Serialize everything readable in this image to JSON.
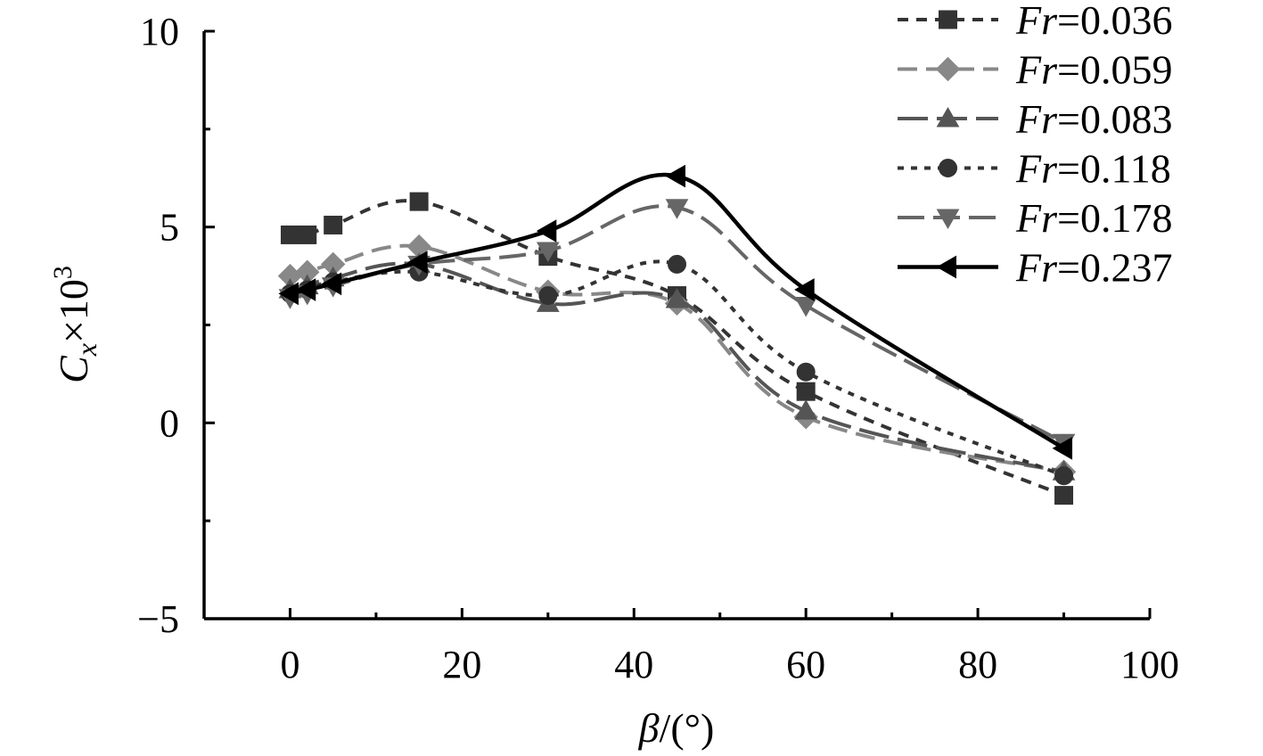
{
  "chart_data": {
    "type": "line",
    "title": "",
    "xlabel": {
      "symbol": "β",
      "unit": "/(°)"
    },
    "ylabel": {
      "symbol": "C",
      "subscript": "x",
      "times": "×10",
      "exponent": "3"
    },
    "xlim": [
      -10,
      100
    ],
    "ylim": [
      -5,
      10
    ],
    "xticks": [
      0,
      20,
      40,
      60,
      80,
      100
    ],
    "yticks": [
      -5,
      0,
      5,
      10
    ],
    "xtick_labels": [
      "0",
      "20",
      "40",
      "60",
      "80",
      "100"
    ],
    "ytick_labels": [
      "−5",
      "0",
      "5",
      "10"
    ],
    "grid": false,
    "legend_position": "top-right",
    "series": [
      {
        "name": "Fr=0.036",
        "label_italic": "Fr",
        "label_value": "=0.036",
        "marker": "square",
        "color": "#333333",
        "dash": "12,9",
        "stroke_width": 4,
        "x": [
          0,
          2,
          5,
          15,
          30,
          45,
          60,
          90
        ],
        "y": [
          4.8,
          4.8,
          5.05,
          5.65,
          4.25,
          3.25,
          0.8,
          -1.85
        ]
      },
      {
        "name": "Fr=0.059",
        "label_italic": "Fr",
        "label_value": "=0.059",
        "marker": "diamond",
        "color": "#888888",
        "dash": "22,10",
        "stroke_width": 4,
        "x": [
          0,
          2,
          5,
          15,
          30,
          45,
          60,
          90
        ],
        "y": [
          3.75,
          3.85,
          4.05,
          4.5,
          3.35,
          3.05,
          0.15,
          -1.25
        ]
      },
      {
        "name": "Fr=0.083",
        "label_italic": "Fr",
        "label_value": "=0.083",
        "marker": "triangle-up",
        "color": "#555555",
        "dash": "34,10",
        "stroke_width": 4,
        "x": [
          0,
          2,
          5,
          15,
          30,
          45,
          60,
          90
        ],
        "y": [
          3.4,
          3.5,
          3.7,
          4.05,
          3.05,
          3.15,
          0.3,
          -1.25
        ]
      },
      {
        "name": "Fr=0.118",
        "label_italic": "Fr",
        "label_value": "=0.118",
        "marker": "circle",
        "color": "#333333",
        "dash": "7,8",
        "stroke_width": 4,
        "x": [
          0,
          2,
          5,
          15,
          30,
          45,
          60,
          90
        ],
        "y": [
          3.3,
          3.4,
          3.6,
          3.85,
          3.25,
          4.05,
          1.3,
          -1.35
        ]
      },
      {
        "name": "Fr=0.178",
        "label_italic": "Fr",
        "label_value": "=0.178",
        "marker": "triangle-down",
        "color": "#666666",
        "dash": "30,10",
        "stroke_width": 4,
        "x": [
          0,
          2,
          5,
          15,
          30,
          45,
          60,
          90
        ],
        "y": [
          3.2,
          3.3,
          3.5,
          4.05,
          4.4,
          5.5,
          3.0,
          -0.5
        ]
      },
      {
        "name": "Fr=0.237",
        "label_italic": "Fr",
        "label_value": "=0.237",
        "marker": "triangle-left",
        "color": "#000000",
        "dash": "",
        "stroke_width": 4.5,
        "x": [
          0,
          2,
          5,
          15,
          30,
          45,
          60,
          90
        ],
        "y": [
          3.3,
          3.4,
          3.55,
          4.1,
          4.9,
          6.3,
          3.4,
          -0.65
        ]
      }
    ]
  }
}
